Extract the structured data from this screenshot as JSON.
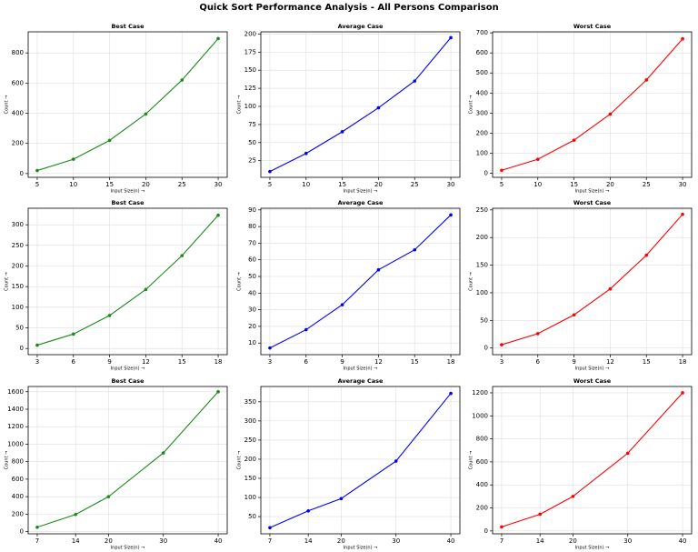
{
  "title": "Quick Sort Performance Analysis - All Persons Comparison",
  "chart_data": [
    {
      "type": "line",
      "title": "Best Case",
      "xlabel": "Input Size(n) →",
      "ylabel": "Count →",
      "x": [
        5,
        10,
        15,
        20,
        25,
        30
      ],
      "values": [
        20,
        95,
        220,
        395,
        620,
        895
      ],
      "color": "#1a8a1a",
      "xlim": [
        3.75,
        31.25
      ],
      "xticks": [
        5,
        10,
        15,
        20,
        25,
        30
      ],
      "ylim": [
        -25,
        940
      ],
      "yticks": [
        0,
        200,
        400,
        600,
        800
      ],
      "grid": true
    },
    {
      "type": "line",
      "title": "Average Case",
      "xlabel": "Input Size(n) →",
      "ylabel": "Count →",
      "x": [
        5,
        10,
        15,
        20,
        25,
        30
      ],
      "values": [
        10,
        35,
        65,
        98,
        135,
        195
      ],
      "color": "#0000ff",
      "xlim": [
        3.75,
        31.25
      ],
      "xticks": [
        5,
        10,
        15,
        20,
        25,
        30
      ],
      "ylim": [
        2,
        203
      ],
      "yticks": [
        25,
        50,
        75,
        100,
        125,
        150,
        175,
        200
      ],
      "grid": true
    },
    {
      "type": "line",
      "title": "Worst Case",
      "xlabel": "Input Size(n) →",
      "ylabel": "Count →",
      "x": [
        5,
        10,
        15,
        20,
        25,
        30
      ],
      "values": [
        15,
        70,
        165,
        295,
        465,
        670
      ],
      "color": "#ff0000",
      "xlim": [
        3.75,
        31.25
      ],
      "xticks": [
        5,
        10,
        15,
        20,
        25,
        30
      ],
      "ylim": [
        -20,
        705
      ],
      "yticks": [
        0,
        100,
        200,
        300,
        400,
        500,
        600,
        700
      ],
      "grid": true
    },
    {
      "type": "line",
      "title": "Best Case",
      "xlabel": "Input Size(n) →",
      "ylabel": "Count →",
      "x": [
        3,
        6,
        9,
        12,
        15,
        18
      ],
      "values": [
        8,
        35,
        80,
        143,
        225,
        323
      ],
      "color": "#1a8a1a",
      "xlim": [
        2.25,
        18.75
      ],
      "xticks": [
        3,
        6,
        9,
        12,
        15,
        18
      ],
      "ylim": [
        -15,
        340
      ],
      "yticks": [
        0,
        50,
        100,
        150,
        200,
        250,
        300
      ],
      "grid": true
    },
    {
      "type": "line",
      "title": "Average Case",
      "xlabel": "Input Size(n) →",
      "ylabel": "Count →",
      "x": [
        3,
        6,
        9,
        12,
        15,
        18
      ],
      "values": [
        7,
        18,
        33,
        54,
        66,
        87
      ],
      "color": "#0000ff",
      "xlim": [
        2.25,
        18.75
      ],
      "xticks": [
        3,
        6,
        9,
        12,
        15,
        18
      ],
      "ylim": [
        3,
        91
      ],
      "yticks": [
        10,
        20,
        30,
        40,
        50,
        60,
        70,
        80,
        90
      ],
      "grid": true
    },
    {
      "type": "line",
      "title": "Worst Case",
      "xlabel": "Input Size(n) →",
      "ylabel": "Count →",
      "x": [
        3,
        6,
        9,
        12,
        15,
        18
      ],
      "values": [
        6,
        26,
        60,
        107,
        168,
        242
      ],
      "color": "#ff0000",
      "xlim": [
        2.25,
        18.75
      ],
      "xticks": [
        3,
        6,
        9,
        12,
        15,
        18
      ],
      "ylim": [
        -12,
        253
      ],
      "yticks": [
        0,
        50,
        100,
        150,
        200,
        250
      ],
      "grid": true
    },
    {
      "type": "line",
      "title": "Best Case",
      "xlabel": "Input Size(n) →",
      "ylabel": "Count →",
      "x": [
        7,
        14,
        20,
        30,
        40
      ],
      "values": [
        50,
        196,
        400,
        900,
        1600
      ],
      "color": "#1a8a1a",
      "xlim": [
        5.35,
        41.65
      ],
      "xticks": [
        7,
        14,
        20,
        30,
        40
      ],
      "ylim": [
        -25,
        1660
      ],
      "yticks": [
        0,
        200,
        400,
        600,
        800,
        1000,
        1200,
        1400,
        1600
      ],
      "grid": true
    },
    {
      "type": "line",
      "title": "Average Case",
      "xlabel": "Input Size(n) →",
      "ylabel": "Count →",
      "x": [
        7,
        14,
        20,
        30,
        40
      ],
      "values": [
        21,
        65,
        97,
        195,
        372
      ],
      "color": "#0000ff",
      "xlim": [
        5.35,
        41.65
      ],
      "xticks": [
        7,
        14,
        20,
        30,
        40
      ],
      "ylim": [
        5,
        390
      ],
      "yticks": [
        50,
        100,
        150,
        200,
        250,
        300,
        350
      ],
      "grid": true
    },
    {
      "type": "line",
      "title": "Worst Case",
      "xlabel": "Input Size(n) →",
      "ylabel": "Count →",
      "x": [
        7,
        14,
        20,
        30,
        40
      ],
      "values": [
        35,
        145,
        300,
        675,
        1200
      ],
      "color": "#ff0000",
      "xlim": [
        5.35,
        41.65
      ],
      "xticks": [
        7,
        14,
        20,
        30,
        40
      ],
      "ylim": [
        -25,
        1255
      ],
      "yticks": [
        0,
        200,
        400,
        600,
        800,
        1000,
        1200
      ],
      "grid": true
    }
  ]
}
